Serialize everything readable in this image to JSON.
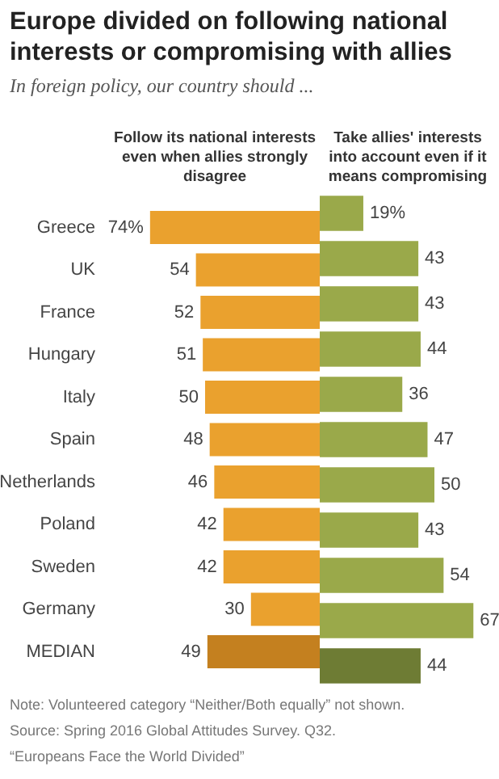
{
  "chart_data": [
    {
      "type": "bar",
      "orientation": "horizontal",
      "title": "Europe divided on following national interests or compromising with allies",
      "subtitle": "In foreign policy, our country should ...",
      "categories": [
        "Greece",
        "UK",
        "France",
        "Hungary",
        "Italy",
        "Spain",
        "Netherlands",
        "Poland",
        "Sweden",
        "Germany",
        "MEDIAN"
      ],
      "series": [
        {
          "name": "Follow its national interests even when allies strongly disagree",
          "colors": [
            "#eaa12e",
            "#eaa12e",
            "#eaa12e",
            "#eaa12e",
            "#eaa12e",
            "#eaa12e",
            "#eaa12e",
            "#eaa12e",
            "#eaa12e",
            "#eaa12e",
            "#c4801f"
          ],
          "values": [
            74,
            54,
            52,
            51,
            50,
            48,
            46,
            42,
            42,
            30,
            49
          ],
          "value_labels": [
            "74%",
            "54",
            "52",
            "51",
            "50",
            "48",
            "46",
            "42",
            "42",
            "30",
            "49"
          ]
        }
      ],
      "legend": false,
      "grid": false,
      "tick_labels": "y",
      "annotations": [
        "Note: Volunteered category “Neither/Both equally” not shown.",
        "Source: Spring 2016 Global Attitudes Survey. Q32.",
        "“Europeans Face the World Divided”"
      ]
    },
    {
      "type": "bar",
      "orientation": "horizontal",
      "categories": [
        null,
        null,
        null,
        null,
        null,
        null,
        null,
        null,
        null,
        null,
        null
      ],
      "series": [
        {
          "name": "Take allies' interests into account even if it means compromising",
          "colors": [
            "#9aa94a",
            "#9aa94a",
            "#9aa94a",
            "#9aa94a",
            "#9aa94a",
            "#9aa94a",
            "#9aa94a",
            "#9aa94a",
            "#9aa94a",
            "#9aa94a",
            "#6e7c34"
          ],
          "values": [
            19,
            43,
            43,
            44,
            36,
            47,
            50,
            43,
            54,
            67,
            44
          ],
          "value_labels": [
            "19%",
            "43",
            "43",
            "44",
            "36",
            "47",
            "50",
            "43",
            "54",
            "67",
            "44"
          ]
        }
      ],
      "legend": false,
      "grid": false,
      "tick_labels": false
    }
  ]
}
